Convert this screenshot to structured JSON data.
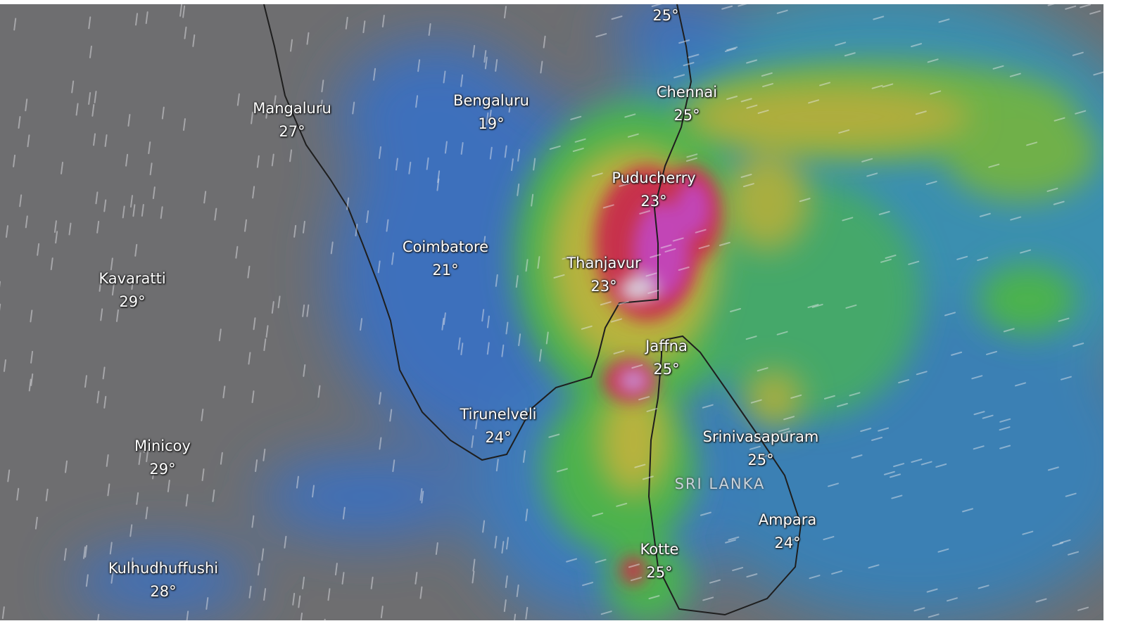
{
  "map": {
    "layer": "weather-overlay",
    "colors": {
      "base": "#6e6e70",
      "blue": "#3d6fbc",
      "teal": "#3a9cb2",
      "green": "#4cb24e",
      "yellow": "#b8b23c",
      "red": "#c7314c",
      "magenta": "#c244b6",
      "white": "#d9d2e0",
      "coastline": "#1e1e1e"
    },
    "country_label": "SRI LANKA",
    "cities": [
      {
        "name": "Mangaluru",
        "temp": "27°"
      },
      {
        "name": "Bengaluru",
        "temp": "19°"
      },
      {
        "name": "Chennai",
        "temp": "25°"
      },
      {
        "name": "Puducherry",
        "temp": "23°"
      },
      {
        "name": "Coimbatore",
        "temp": "21°"
      },
      {
        "name": "Thanjavur",
        "temp": "23°"
      },
      {
        "name": "Kavaratti",
        "temp": "29°"
      },
      {
        "name": "Jaffna",
        "temp": "25°"
      },
      {
        "name": "Tirunelveli",
        "temp": "24°"
      },
      {
        "name": "Srinivasapuram",
        "temp": "25°"
      },
      {
        "name": "Minicoy",
        "temp": "29°"
      },
      {
        "name": "Ampara",
        "temp": "24°"
      },
      {
        "name": "Kotte",
        "temp": "25°"
      },
      {
        "name": "Kulhudhuffushi",
        "temp": "28°"
      }
    ],
    "top_temp": "25°"
  }
}
